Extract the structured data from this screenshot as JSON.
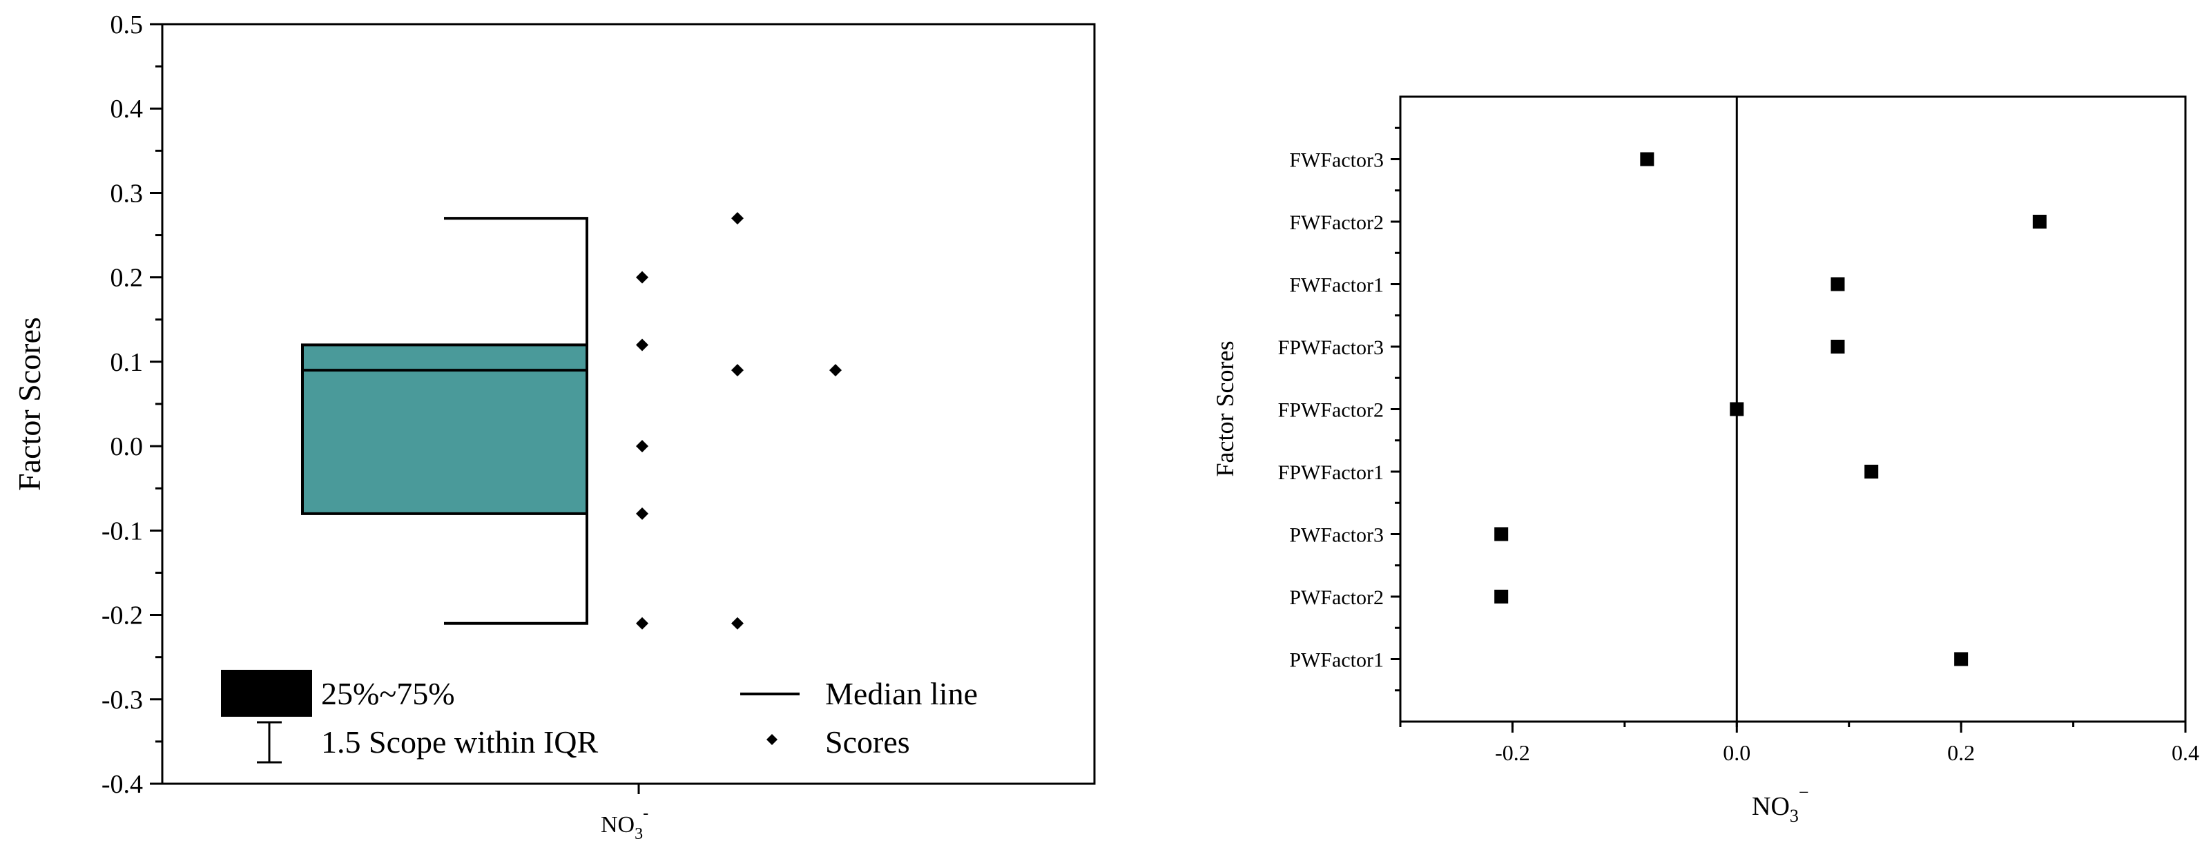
{
  "colors": {
    "box_fill": "#4a9a9a",
    "ink": "#000000"
  },
  "chart_data": [
    {
      "type": "box",
      "ylabel": "Factor Scores",
      "xlabel": "",
      "category_main": "NO",
      "category_sub": "3",
      "category_sup": "-",
      "ylim": [
        -0.4,
        0.5
      ],
      "yticks": [
        -0.4,
        -0.3,
        -0.2,
        -0.1,
        0.0,
        0.1,
        0.2,
        0.3,
        0.4,
        0.5
      ],
      "ytick_labels": [
        "-0.4",
        "-0.3",
        "-0.2",
        "-0.1",
        "0.0",
        "0.1",
        "0.2",
        "0.3",
        "0.4",
        "0.5"
      ],
      "box": {
        "q1": -0.08,
        "median": 0.09,
        "q3": 0.12,
        "whisker_low": -0.21,
        "whisker_high": 0.27
      },
      "scores": [
        {
          "col": 1,
          "y": 0.2
        },
        {
          "col": 1,
          "y": 0.12
        },
        {
          "col": 1,
          "y": 0.0
        },
        {
          "col": 1,
          "y": -0.08
        },
        {
          "col": 1,
          "y": -0.21
        },
        {
          "col": 2,
          "y": 0.27
        },
        {
          "col": 2,
          "y": 0.09
        },
        {
          "col": 2,
          "y": -0.21
        },
        {
          "col": 3,
          "y": 0.09
        }
      ],
      "legend": {
        "box": "25%~75%",
        "whisker": "1.5 Scope within IQR",
        "median": "Median line",
        "scores": "Scores"
      },
      "grid": false
    },
    {
      "type": "scatter",
      "ylabel": "Factor Scores",
      "xlabel_main": "NO",
      "xlabel_sub": "3",
      "xlabel_sup": "−",
      "xlim": [
        -0.3,
        0.4
      ],
      "xticks": [
        -0.2,
        0.0,
        0.2,
        0.4
      ],
      "xtick_labels": [
        "-0.2",
        "0.0",
        "0.2",
        "0.4"
      ],
      "categories": [
        "PWFactor1",
        "PWFactor2",
        "PWFactor3",
        "FPWFactor1",
        "FPWFactor2",
        "FPWFactor3",
        "FWFactor1",
        "FWFactor2",
        "FWFactor3"
      ],
      "values": [
        0.2,
        -0.21,
        -0.21,
        0.12,
        0.0,
        0.09,
        0.09,
        0.27,
        -0.08
      ],
      "reference_line_x": 0.0,
      "grid": false
    }
  ]
}
